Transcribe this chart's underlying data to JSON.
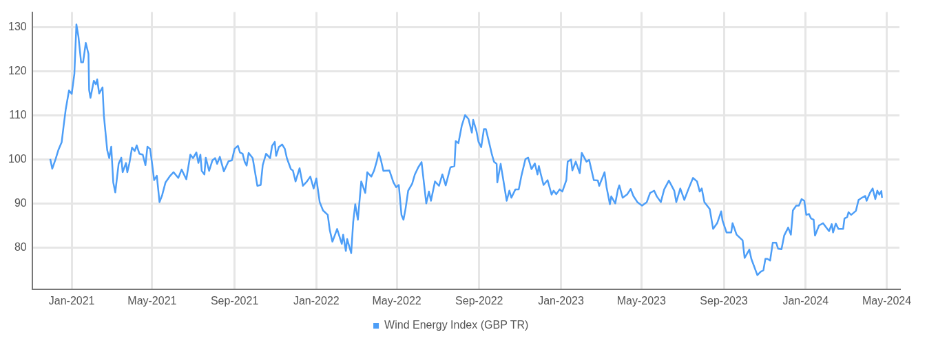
{
  "chart_data": {
    "type": "line",
    "xlim": [
      "2020-11-03",
      "2024-05-20"
    ],
    "xticks": [
      {
        "value": "2021-01-01",
        "label": "Jan-2021"
      },
      {
        "value": "2021-05-01",
        "label": "May-2021"
      },
      {
        "value": "2021-09-01",
        "label": "Sep-2021"
      },
      {
        "value": "2022-01-01",
        "label": "Jan-2022"
      },
      {
        "value": "2022-05-01",
        "label": "May-2022"
      },
      {
        "value": "2022-09-01",
        "label": "Sep-2022"
      },
      {
        "value": "2023-01-01",
        "label": "Jan-2023"
      },
      {
        "value": "2023-05-01",
        "label": "May-2023"
      },
      {
        "value": "2023-09-01",
        "label": "Sep-2023"
      },
      {
        "value": "2024-01-01",
        "label": "Jan-2024"
      },
      {
        "value": "2024-05-01",
        "label": "May-2024"
      }
    ],
    "ylim": [
      70.5,
      133.5
    ],
    "yticks": [
      80,
      90,
      100,
      110,
      120,
      130
    ],
    "grid": true,
    "legend": "bottom",
    "marker": "none",
    "line_style": "solid",
    "series": [
      {
        "name": "Wind Energy Index (GBP TR)",
        "color": "#4d9ef7",
        "x": [
          "2020-11-30",
          "2020-12-03",
          "2020-12-08",
          "2020-12-12",
          "2020-12-17",
          "2020-12-20",
          "2020-12-23",
          "2020-12-28",
          "2021-01-01",
          "2021-01-05",
          "2021-01-08",
          "2021-01-11",
          "2021-01-15",
          "2021-01-18",
          "2021-01-22",
          "2021-01-26",
          "2021-01-27",
          "2021-01-29",
          "2021-02-03",
          "2021-02-06",
          "2021-02-08",
          "2021-02-11",
          "2021-02-16",
          "2021-02-18",
          "2021-02-23",
          "2021-02-26",
          "2021-03-01",
          "2021-03-04",
          "2021-03-07",
          "2021-03-12",
          "2021-03-16",
          "2021-03-18",
          "2021-03-23",
          "2021-03-25",
          "2021-03-28",
          "2021-04-01",
          "2021-04-05",
          "2021-04-08",
          "2021-04-12",
          "2021-04-17",
          "2021-04-21",
          "2021-04-24",
          "2021-04-28",
          "2021-05-01",
          "2021-05-04",
          "2021-05-08",
          "2021-05-12",
          "2021-05-16",
          "2021-05-21",
          "2021-05-28",
          "2021-06-02",
          "2021-06-09",
          "2021-06-14",
          "2021-06-21",
          "2021-06-27",
          "2021-07-01",
          "2021-07-06",
          "2021-07-09",
          "2021-07-12",
          "2021-07-14",
          "2021-07-18",
          "2021-07-20",
          "2021-07-25",
          "2021-07-30",
          "2021-08-03",
          "2021-08-06",
          "2021-08-10",
          "2021-08-16",
          "2021-08-23",
          "2021-08-28",
          "2021-09-01",
          "2021-09-06",
          "2021-09-09",
          "2021-09-13",
          "2021-09-16",
          "2021-09-19",
          "2021-09-22",
          "2021-09-28",
          "2021-10-05",
          "2021-10-10",
          "2021-10-13",
          "2021-10-18",
          "2021-10-24",
          "2021-10-27",
          "2021-10-31",
          "2021-11-02",
          "2021-11-06",
          "2021-11-11",
          "2021-11-15",
          "2021-11-18",
          "2021-11-24",
          "2021-11-27",
          "2021-12-01",
          "2021-12-07",
          "2021-12-12",
          "2021-12-18",
          "2021-12-23",
          "2021-12-28",
          "2022-01-01",
          "2022-01-06",
          "2022-01-11",
          "2022-01-18",
          "2022-01-21",
          "2022-01-25",
          "2022-02-01",
          "2022-02-08",
          "2022-02-10",
          "2022-02-14",
          "2022-02-16",
          "2022-02-22",
          "2022-02-25",
          "2022-02-28",
          "2022-03-04",
          "2022-03-09",
          "2022-03-15",
          "2022-03-18",
          "2022-03-24",
          "2022-03-28",
          "2022-04-01",
          "2022-04-04",
          "2022-04-07",
          "2022-04-11",
          "2022-04-20",
          "2022-04-26",
          "2022-04-30",
          "2022-05-04",
          "2022-05-08",
          "2022-05-11",
          "2022-05-14",
          "2022-05-18",
          "2022-05-24",
          "2022-05-28",
          "2022-06-02",
          "2022-06-07",
          "2022-06-14",
          "2022-06-18",
          "2022-06-21",
          "2022-06-27",
          "2022-07-03",
          "2022-07-08",
          "2022-07-13",
          "2022-07-20",
          "2022-07-26",
          "2022-07-28",
          "2022-08-01",
          "2022-08-06",
          "2022-08-11",
          "2022-08-16",
          "2022-08-21",
          "2022-08-23",
          "2022-08-28",
          "2022-08-31",
          "2022-09-04",
          "2022-09-08",
          "2022-09-11",
          "2022-09-16",
          "2022-09-20",
          "2022-09-23",
          "2022-09-27",
          "2022-09-28",
          "2022-10-03",
          "2022-10-07",
          "2022-10-12",
          "2022-10-16",
          "2022-10-19",
          "2022-10-25",
          "2022-10-30",
          "2022-11-03",
          "2022-11-09",
          "2022-11-13",
          "2022-11-18",
          "2022-11-23",
          "2022-11-27",
          "2022-11-29",
          "2022-12-02",
          "2022-12-06",
          "2022-12-12",
          "2022-12-18",
          "2022-12-21",
          "2022-12-25",
          "2022-12-30",
          "2023-01-03",
          "2023-01-09",
          "2023-01-11",
          "2023-01-16",
          "2023-01-18",
          "2023-01-23",
          "2023-01-29",
          "2023-02-01",
          "2023-02-08",
          "2023-02-12",
          "2023-02-19",
          "2023-02-25",
          "2023-02-27",
          "2023-03-07",
          "2023-03-10",
          "2023-03-15",
          "2023-03-17",
          "2023-03-23",
          "2023-03-27",
          "2023-03-29",
          "2023-04-03",
          "2023-04-10",
          "2023-04-15",
          "2023-04-19",
          "2023-04-25",
          "2023-05-02",
          "2023-05-09",
          "2023-05-14",
          "2023-05-20",
          "2023-05-24",
          "2023-05-30",
          "2023-06-04",
          "2023-06-11",
          "2023-06-19",
          "2023-06-22",
          "2023-06-28",
          "2023-07-04",
          "2023-07-10",
          "2023-07-17",
          "2023-07-23",
          "2023-07-27",
          "2023-07-30",
          "2023-08-03",
          "2023-08-11",
          "2023-08-16",
          "2023-08-22",
          "2023-08-28",
          "2023-08-30",
          "2023-09-05",
          "2023-09-12",
          "2023-09-14",
          "2023-09-20",
          "2023-09-29",
          "2023-10-02",
          "2023-10-09",
          "2023-10-12",
          "2023-10-21",
          "2023-10-26",
          "2023-10-30",
          "2023-11-02",
          "2023-11-05",
          "2023-11-09",
          "2023-11-13",
          "2023-11-18",
          "2023-11-21",
          "2023-11-26",
          "2023-11-30",
          "2023-12-06",
          "2023-12-10",
          "2023-12-13",
          "2023-12-18",
          "2023-12-22",
          "2023-12-26",
          "2023-12-30",
          "2024-01-02",
          "2024-01-06",
          "2024-01-09",
          "2024-01-13",
          "2024-01-15",
          "2024-01-21",
          "2024-01-27",
          "2024-02-01",
          "2024-02-05",
          "2024-02-09",
          "2024-02-11",
          "2024-02-15",
          "2024-02-19",
          "2024-02-26",
          "2024-02-28",
          "2024-03-03",
          "2024-03-05",
          "2024-03-09",
          "2024-03-16",
          "2024-03-20",
          "2024-03-25",
          "2024-03-30",
          "2024-04-01",
          "2024-04-06",
          "2024-04-10",
          "2024-04-14",
          "2024-04-17",
          "2024-04-20",
          "2024-04-23",
          "2024-04-24"
        ],
        "values": [
          100.1,
          97.9,
          100.1,
          102.1,
          103.9,
          107.7,
          111.3,
          115.7,
          114.9,
          119.5,
          130.7,
          128,
          122.1,
          122.1,
          126.5,
          124,
          115.8,
          114,
          117.9,
          117.1,
          118.2,
          115,
          116.4,
          110,
          102.1,
          100.3,
          102.9,
          94.8,
          92.5,
          99,
          100.4,
          97.1,
          99.2,
          97.1,
          99.1,
          102.7,
          101.9,
          103.2,
          101.3,
          101.1,
          98.7,
          102.9,
          102.4,
          99,
          95.3,
          96.3,
          90.3,
          91.9,
          94.8,
          96.3,
          97.1,
          95.8,
          97.7,
          95.5,
          101.1,
          100.3,
          101.6,
          99.2,
          101.1,
          97.4,
          96.6,
          100.4,
          97.4,
          99.8,
          100.3,
          99,
          100.6,
          97.3,
          99.6,
          99.8,
          102.4,
          103.1,
          101.6,
          101.3,
          99.5,
          98.6,
          101.5,
          100.3,
          94,
          94.2,
          98.7,
          101.3,
          100.3,
          103.1,
          104,
          100.8,
          102.8,
          103.4,
          102.4,
          100.3,
          97.8,
          97.5,
          95,
          98,
          94,
          95,
          96.1,
          93.4,
          95.7,
          90.3,
          88.4,
          87.4,
          84,
          81.3,
          84.2,
          80.8,
          82.9,
          79.2,
          81.9,
          78.7,
          85.8,
          89.8,
          86.3,
          95,
          92.4,
          97.1,
          96.1,
          97.4,
          99.5,
          101.6,
          100.1,
          97.4,
          97.5,
          94.8,
          93.7,
          94.2,
          87.4,
          86.3,
          88.7,
          92.9,
          94.5,
          96.6,
          98.2,
          99.4,
          90,
          92.7,
          90.6,
          95,
          94,
          96.6,
          94.1,
          98.2,
          98.5,
          104.2,
          103.7,
          107.7,
          110.1,
          109.2,
          106.1,
          109,
          106.4,
          104,
          102.8,
          106.9,
          106.9,
          103.7,
          101.1,
          99.5,
          99,
          94.8,
          99,
          95.3,
          90.6,
          92.9,
          91.3,
          93.2,
          93.2,
          96.3,
          100.1,
          100.4,
          97.8,
          99.1,
          96.6,
          98.5,
          96.6,
          94.2,
          95.3,
          92,
          92.9,
          92.1,
          93.2,
          92.7,
          95.3,
          99.5,
          100,
          97.5,
          99.5,
          96.9,
          101.5,
          99.5,
          99.9,
          95.3,
          95.2,
          94,
          97.1,
          93.7,
          89.8,
          91.6,
          90,
          93.2,
          94.1,
          91.3,
          92.1,
          93.3,
          91.7,
          90.3,
          89.5,
          90.3,
          92.4,
          92.9,
          91.6,
          90.3,
          93.2,
          95.2,
          92.9,
          90.3,
          93.4,
          90.8,
          93.2,
          95.8,
          95,
          92.7,
          93.4,
          90.3,
          88.7,
          84.2,
          85.5,
          88.2,
          86.1,
          83.4,
          83.4,
          85.5,
          82.9,
          81.6,
          77.6,
          79.5,
          77.4,
          73.7,
          74.5,
          74.8,
          77.4,
          77.4,
          77,
          81.1,
          81.1,
          79.7,
          79.6,
          82.7,
          84.5,
          82.9,
          88.4,
          89.5,
          89.5,
          91,
          90.6,
          87.4,
          87.6,
          86.6,
          86.3,
          82.7,
          85,
          85.5,
          84.5,
          83.7,
          85.3,
          83.4,
          85.4,
          84.2,
          84.2,
          86.6,
          86.9,
          88,
          87.4,
          88.3,
          90.8,
          91.3,
          91.7,
          90.6,
          92.4,
          93.4,
          91,
          92.9,
          92,
          92.8,
          91.3
        ]
      }
    ]
  }
}
